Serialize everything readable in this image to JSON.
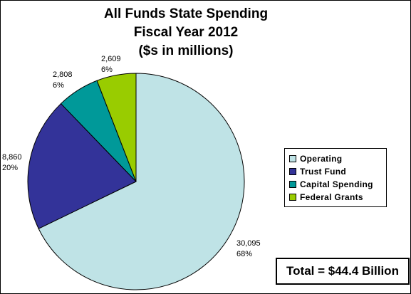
{
  "chart_data": {
    "type": "pie",
    "title_lines": [
      "All Funds State Spending",
      "Fiscal Year 2012",
      "($s in millions)"
    ],
    "slices": [
      {
        "name": "Operating",
        "value": 30095,
        "value_label": "30,095",
        "pct_label": "68%",
        "color": "#bfe3e6"
      },
      {
        "name": "Trust Fund",
        "value": 8860,
        "value_label": "8,860",
        "pct_label": "20%",
        "color": "#333399"
      },
      {
        "name": "Capital Spending",
        "value": 2808,
        "value_label": "2,808",
        "pct_label": "6%",
        "color": "#009999"
      },
      {
        "name": "Federal Grants",
        "value": 2609,
        "value_label": "2,609",
        "pct_label": "6%",
        "color": "#99cc00"
      }
    ],
    "start_angle": "12 o'clock",
    "direction": "clockwise",
    "legend_position": "right",
    "total_label": "Total = $44.4 Billion"
  }
}
